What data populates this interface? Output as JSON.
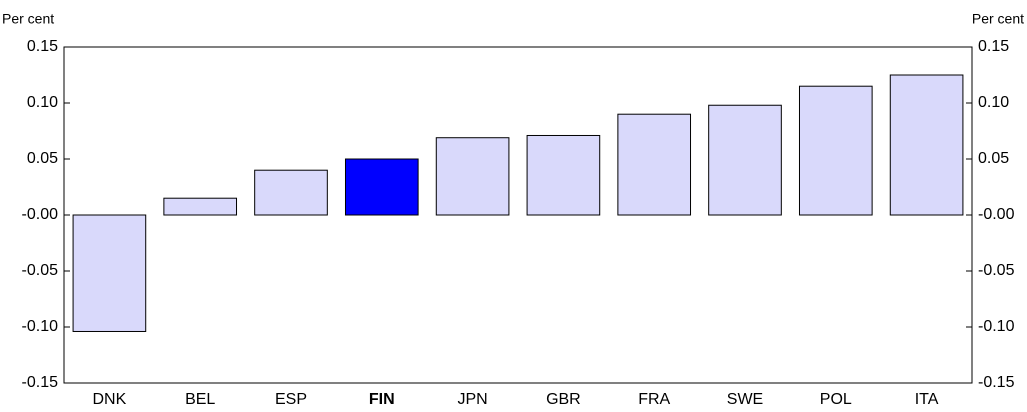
{
  "chart_data": {
    "type": "bar",
    "ylabel": "Per cent",
    "y2label": "Per cent",
    "categories": [
      "DNK",
      "BEL",
      "ESP",
      "FIN",
      "JPN",
      "GBR",
      "FRA",
      "SWE",
      "POL",
      "ITA"
    ],
    "values": [
      -0.104,
      0.015,
      0.04,
      0.05,
      0.069,
      0.071,
      0.09,
      0.098,
      0.115,
      0.125
    ],
    "colors": [
      "#d9d9fb",
      "#d9d9fb",
      "#d9d9fb",
      "#0000ff",
      "#d9d9fb",
      "#d9d9fb",
      "#d9d9fb",
      "#d9d9fb",
      "#d9d9fb",
      "#d9d9fb"
    ],
    "ylim": [
      -0.15,
      0.15
    ],
    "yticks": [
      -0.15,
      {
        "value": -0.1,
        "label": "-0.10"
      },
      -0.05,
      {
        "value": 0,
        "label": "-0.00"
      },
      0.05,
      {
        "value": 0.1,
        "label": "0.10"
      },
      0.15
    ],
    "grid": false
  }
}
